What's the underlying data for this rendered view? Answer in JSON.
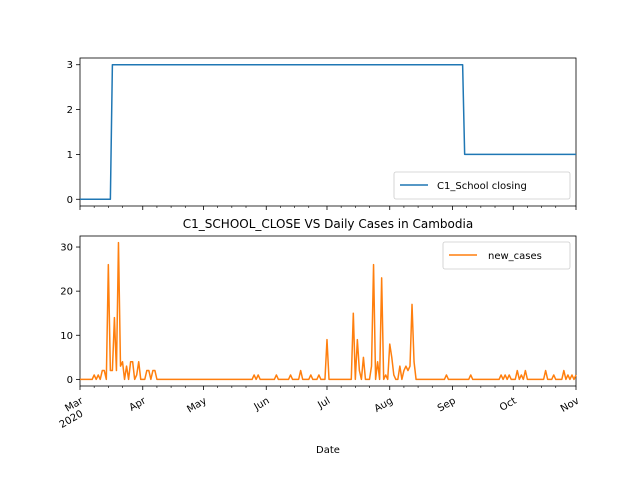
{
  "chart_data": [
    {
      "type": "line",
      "title": "",
      "xlabel": "",
      "ylabel": "",
      "ylim": [
        -0.15,
        3.15
      ],
      "yticks": [
        0,
        1,
        2,
        3
      ],
      "legend": {
        "position": "lower-right",
        "entries": [
          "C1_School closing"
        ]
      },
      "series": [
        {
          "name": "C1_School closing",
          "color": "#1f77b4",
          "points": [
            [
              "2020-03-01",
              0
            ],
            [
              "2020-03-16",
              0
            ],
            [
              "2020-03-17",
              3
            ],
            [
              "2020-09-06",
              3
            ],
            [
              "2020-09-07",
              1
            ],
            [
              "2020-11-01",
              1
            ]
          ]
        }
      ]
    },
    {
      "type": "line",
      "title": "C1_SCHOOL_CLOSE VS Daily Cases in Cambodia",
      "xlabel": "Date",
      "ylabel": "",
      "ylim": [
        -1.5,
        32.5
      ],
      "yticks": [
        0,
        10,
        20,
        30
      ],
      "xlim": [
        "2020-03-01",
        "2020-11-01"
      ],
      "xticks": [
        {
          "date": "2020-03-01",
          "label": "Mar",
          "sublabel": "2020"
        },
        {
          "date": "2020-04-01",
          "label": "Apr"
        },
        {
          "date": "2020-05-01",
          "label": "May"
        },
        {
          "date": "2020-06-01",
          "label": "Jun"
        },
        {
          "date": "2020-07-01",
          "label": "Jul"
        },
        {
          "date": "2020-08-01",
          "label": "Aug"
        },
        {
          "date": "2020-09-01",
          "label": "Sep"
        },
        {
          "date": "2020-10-01",
          "label": "Oct"
        },
        {
          "date": "2020-11-01",
          "label": "Nov"
        }
      ],
      "legend": {
        "position": "top-right",
        "entries": [
          "new_cases"
        ]
      },
      "series": [
        {
          "name": "new_cases",
          "color": "#ff7f0e",
          "points": [
            [
              "2020-03-01",
              0
            ],
            [
              "2020-03-07",
              0
            ],
            [
              "2020-03-08",
              1
            ],
            [
              "2020-03-09",
              0
            ],
            [
              "2020-03-10",
              1
            ],
            [
              "2020-03-11",
              0
            ],
            [
              "2020-03-12",
              2
            ],
            [
              "2020-03-13",
              2
            ],
            [
              "2020-03-14",
              0
            ],
            [
              "2020-03-15",
              26
            ],
            [
              "2020-03-16",
              2
            ],
            [
              "2020-03-17",
              2
            ],
            [
              "2020-03-18",
              14
            ],
            [
              "2020-03-19",
              2
            ],
            [
              "2020-03-20",
              31
            ],
            [
              "2020-03-21",
              3
            ],
            [
              "2020-03-22",
              4
            ],
            [
              "2020-03-23",
              0
            ],
            [
              "2020-03-24",
              3
            ],
            [
              "2020-03-25",
              0
            ],
            [
              "2020-03-26",
              4
            ],
            [
              "2020-03-27",
              4
            ],
            [
              "2020-03-28",
              0
            ],
            [
              "2020-03-29",
              1
            ],
            [
              "2020-03-30",
              4
            ],
            [
              "2020-03-31",
              0
            ],
            [
              "2020-04-01",
              0
            ],
            [
              "2020-04-02",
              0
            ],
            [
              "2020-04-03",
              2
            ],
            [
              "2020-04-04",
              2
            ],
            [
              "2020-04-05",
              0
            ],
            [
              "2020-04-06",
              2
            ],
            [
              "2020-04-07",
              2
            ],
            [
              "2020-04-08",
              0
            ],
            [
              "2020-04-09",
              0
            ],
            [
              "2020-05-25",
              0
            ],
            [
              "2020-05-26",
              1
            ],
            [
              "2020-05-27",
              0
            ],
            [
              "2020-05-28",
              1
            ],
            [
              "2020-05-29",
              0
            ],
            [
              "2020-06-05",
              0
            ],
            [
              "2020-06-06",
              1
            ],
            [
              "2020-06-07",
              0
            ],
            [
              "2020-06-12",
              0
            ],
            [
              "2020-06-13",
              1
            ],
            [
              "2020-06-14",
              0
            ],
            [
              "2020-06-17",
              0
            ],
            [
              "2020-06-18",
              2
            ],
            [
              "2020-06-19",
              0
            ],
            [
              "2020-06-22",
              0
            ],
            [
              "2020-06-23",
              1
            ],
            [
              "2020-06-24",
              0
            ],
            [
              "2020-06-26",
              0
            ],
            [
              "2020-06-27",
              1
            ],
            [
              "2020-06-28",
              0
            ],
            [
              "2020-06-30",
              0
            ],
            [
              "2020-07-01",
              9
            ],
            [
              "2020-07-02",
              0
            ],
            [
              "2020-07-13",
              0
            ],
            [
              "2020-07-14",
              15
            ],
            [
              "2020-07-15",
              0
            ],
            [
              "2020-07-16",
              9
            ],
            [
              "2020-07-17",
              2
            ],
            [
              "2020-07-18",
              0
            ],
            [
              "2020-07-19",
              5
            ],
            [
              "2020-07-20",
              0
            ],
            [
              "2020-07-22",
              0
            ],
            [
              "2020-07-23",
              3
            ],
            [
              "2020-07-24",
              26
            ],
            [
              "2020-07-25",
              0
            ],
            [
              "2020-07-26",
              4
            ],
            [
              "2020-07-27",
              0
            ],
            [
              "2020-07-28",
              23
            ],
            [
              "2020-07-29",
              0
            ],
            [
              "2020-07-30",
              1
            ],
            [
              "2020-07-31",
              0
            ],
            [
              "2020-08-01",
              8
            ],
            [
              "2020-08-02",
              5
            ],
            [
              "2020-08-03",
              1
            ],
            [
              "2020-08-04",
              0
            ],
            [
              "2020-08-05",
              0
            ],
            [
              "2020-08-06",
              3
            ],
            [
              "2020-08-07",
              0
            ],
            [
              "2020-08-08",
              2
            ],
            [
              "2020-08-09",
              3
            ],
            [
              "2020-08-10",
              2
            ],
            [
              "2020-08-11",
              3
            ],
            [
              "2020-08-12",
              17
            ],
            [
              "2020-08-13",
              4
            ],
            [
              "2020-08-14",
              0
            ],
            [
              "2020-08-28",
              0
            ],
            [
              "2020-08-29",
              1
            ],
            [
              "2020-08-30",
              0
            ],
            [
              "2020-09-09",
              0
            ],
            [
              "2020-09-10",
              1
            ],
            [
              "2020-09-11",
              0
            ],
            [
              "2020-09-24",
              0
            ],
            [
              "2020-09-25",
              1
            ],
            [
              "2020-09-26",
              0
            ],
            [
              "2020-09-27",
              1
            ],
            [
              "2020-09-28",
              0
            ],
            [
              "2020-09-29",
              1
            ],
            [
              "2020-09-30",
              0
            ],
            [
              "2020-10-02",
              0
            ],
            [
              "2020-10-03",
              2
            ],
            [
              "2020-10-04",
              0
            ],
            [
              "2020-10-05",
              1
            ],
            [
              "2020-10-06",
              0
            ],
            [
              "2020-10-07",
              2
            ],
            [
              "2020-10-08",
              0
            ],
            [
              "2020-10-16",
              0
            ],
            [
              "2020-10-17",
              2
            ],
            [
              "2020-10-18",
              0
            ],
            [
              "2020-10-20",
              0
            ],
            [
              "2020-10-21",
              1
            ],
            [
              "2020-10-22",
              0
            ],
            [
              "2020-10-25",
              0
            ],
            [
              "2020-10-26",
              2
            ],
            [
              "2020-10-27",
              0
            ],
            [
              "2020-10-28",
              1
            ],
            [
              "2020-10-29",
              0
            ],
            [
              "2020-10-30",
              1
            ],
            [
              "2020-10-31",
              0
            ],
            [
              "2020-11-01",
              1
            ]
          ]
        }
      ]
    }
  ]
}
